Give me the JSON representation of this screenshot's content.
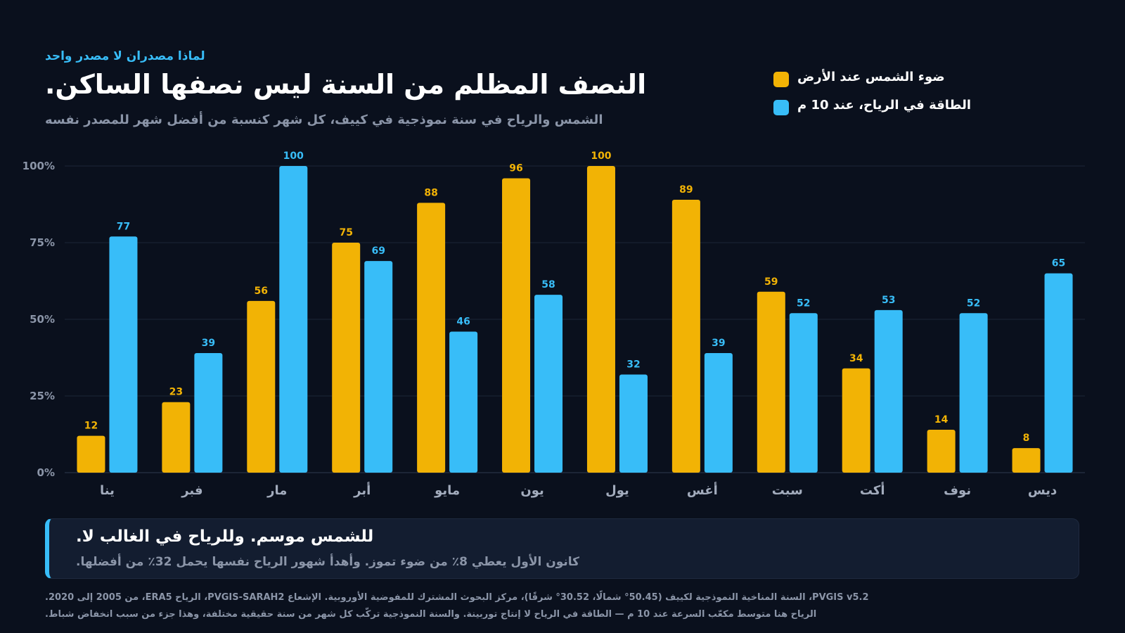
{
  "header": {
    "kicker": "لماذا مصدران لا مصدر واحد",
    "title": "النصف المظلم من السنة ليس نصفها الساكن.",
    "subtitle": "الشمس والرياح في سنة نموذجية في كييف، كل شهر كنسبة من أفضل شهر للمصدر نفسه"
  },
  "legend": [
    {
      "label": "ضوء الشمس عند الأرض",
      "color": "#f2b305"
    },
    {
      "label": "الطاقة في الرياح، عند 10 م",
      "color": "#38bdf8"
    }
  ],
  "chart_data": {
    "type": "bar",
    "categories": [
      "ينا",
      "فبر",
      "مار",
      "أبر",
      "مايو",
      "يون",
      "يول",
      "أغس",
      "سبت",
      "أكت",
      "نوف",
      "ديس"
    ],
    "series": [
      {
        "name": "ضوء الشمس عند الأرض",
        "color": "#f2b305",
        "values": [
          12,
          23,
          56,
          75,
          88,
          96,
          100,
          89,
          59,
          34,
          14,
          8
        ]
      },
      {
        "name": "الطاقة في الرياح، عند 10 م",
        "color": "#38bdf8",
        "values": [
          77,
          39,
          100,
          69,
          46,
          58,
          32,
          39,
          52,
          53,
          52,
          65
        ]
      }
    ],
    "ylim": [
      0,
      100
    ],
    "yticks": [
      0,
      25,
      50,
      75,
      100
    ],
    "ytick_labels": [
      "0%",
      "25%",
      "50%",
      "75%",
      "100%"
    ],
    "grid": true,
    "legend_position": "top-right"
  },
  "callout": {
    "title": "للشمس موسم. وللرياح في الغالب لا.",
    "text": "كانون الأول يعطي 8٪ من ضوء تموز. وأهدأ شهور الرياح نفسها يحمل 32٪ من أفضلها."
  },
  "source": {
    "line1": "PVGIS v5.2، السنة المناخية النموذجية لكييف (50.45° شمالًا، 30.52° شرقًا)، مركز البحوث المشترك للمفوضية الأوروبية. الإشعاع PVGIS-SARAH2، الرياح ERA5، من 2005 إلى 2020.",
    "line2": "الرياح هنا متوسط مكعّب السرعة عند 10 م — الطاقة في الرياح لا إنتاج توربينة. والسنة النموذجية تركّب كل شهر من سنة حقيقية مختلفة، وهذا جزء من سبب انخفاض شباط."
  }
}
